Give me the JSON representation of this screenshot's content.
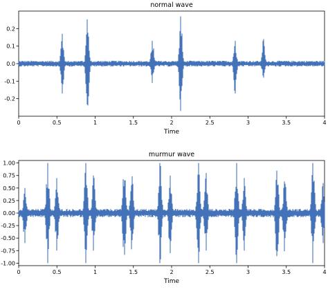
{
  "chart_data": [
    {
      "type": "line",
      "title": "normal wave",
      "xlabel": "Time",
      "ylabel": "",
      "xlim": [
        0,
        4
      ],
      "ylim": [
        -0.3,
        0.3
      ],
      "x_ticks": [
        0,
        0.5,
        1,
        1.5,
        2,
        2.5,
        3,
        3.5,
        4
      ],
      "x_tick_labels": [
        "0",
        "0.5",
        "1",
        "1.5",
        "2",
        "2.5",
        "3",
        "3.5",
        "4"
      ],
      "y_ticks": [
        0.2,
        0.1,
        0.0,
        -0.1,
        -0.2
      ],
      "y_tick_labels": [
        "0.2",
        "0.1",
        "0.0",
        "-0.1",
        "-0.2"
      ],
      "grid": false,
      "color": "#4472b8",
      "baseline_noise": 0.012,
      "bursts": [
        {
          "t": 0.57,
          "amp": 0.17,
          "min": -0.17
        },
        {
          "t": 0.9,
          "amp": 0.27,
          "min": -0.27
        },
        {
          "t": 1.75,
          "amp": 0.13,
          "min": -0.11
        },
        {
          "t": 2.12,
          "amp": 0.27,
          "min": -0.27
        },
        {
          "t": 2.83,
          "amp": 0.13,
          "min": -0.17
        },
        {
          "t": 3.2,
          "amp": 0.14,
          "min": -0.08
        }
      ]
    },
    {
      "type": "line",
      "title": "murmur wave",
      "xlabel": "Time",
      "ylabel": "",
      "xlim": [
        0,
        4
      ],
      "ylim": [
        -1.05,
        1.05
      ],
      "x_ticks": [
        0,
        0.5,
        1,
        1.5,
        2,
        2.5,
        3,
        3.5,
        4
      ],
      "x_tick_labels": [
        "0",
        "0.5",
        "1",
        "1.5",
        "2",
        "2.5",
        "3",
        "3.5",
        "4"
      ],
      "y_ticks": [
        1.0,
        0.75,
        0.5,
        0.25,
        0.0,
        -0.25,
        -0.5,
        -0.75,
        -1.0
      ],
      "y_tick_labels": [
        "1.00",
        "0.75",
        "0.50",
        "0.25",
        "0.00",
        "-0.25",
        "-0.50",
        "-0.75",
        "-1.00"
      ],
      "grid": false,
      "color": "#4472b8",
      "baseline_noise": 0.06,
      "bursts": [
        {
          "t": 0.08,
          "amp": 0.5,
          "min": -0.6
        },
        {
          "t": 0.38,
          "amp": 1.0,
          "min": -1.0
        },
        {
          "t": 0.5,
          "amp": 0.7,
          "min": -0.75
        },
        {
          "t": 0.88,
          "amp": 1.0,
          "min": -1.0
        },
        {
          "t": 0.98,
          "amp": 0.75,
          "min": -0.75
        },
        {
          "t": 1.38,
          "amp": 1.0,
          "min": -1.0
        },
        {
          "t": 1.48,
          "amp": 0.8,
          "min": -0.8
        },
        {
          "t": 1.85,
          "amp": 1.0,
          "min": -1.0
        },
        {
          "t": 1.98,
          "amp": 0.75,
          "min": -0.8
        },
        {
          "t": 2.35,
          "amp": 1.0,
          "min": -1.0
        },
        {
          "t": 2.45,
          "amp": 0.8,
          "min": -0.75
        },
        {
          "t": 2.85,
          "amp": 1.0,
          "min": -1.0
        },
        {
          "t": 2.95,
          "amp": 0.7,
          "min": -0.75
        },
        {
          "t": 3.38,
          "amp": 1.0,
          "min": -1.0
        },
        {
          "t": 3.48,
          "amp": 0.75,
          "min": -0.8
        },
        {
          "t": 3.85,
          "amp": 1.0,
          "min": -1.0
        },
        {
          "t": 3.98,
          "amp": 0.6,
          "min": -0.6
        }
      ]
    }
  ]
}
